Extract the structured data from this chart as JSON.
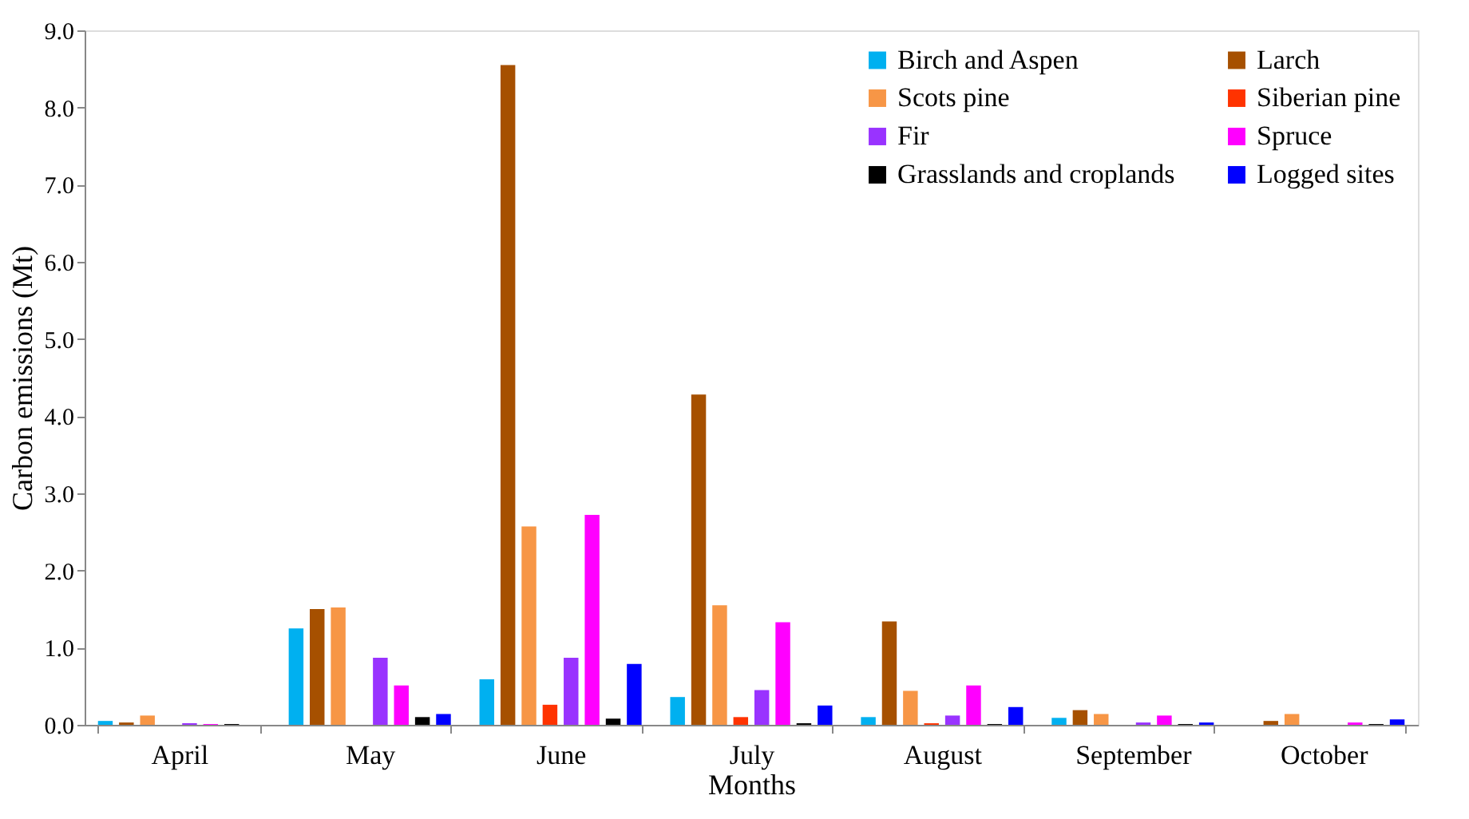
{
  "chart_data": {
    "type": "bar",
    "xlabel": "Months",
    "ylabel": "Carbon emissions (Mt)",
    "categories": [
      "April",
      "May",
      "June",
      "July",
      "August",
      "September",
      "October"
    ],
    "series": [
      {
        "name": "Birch and Aspen",
        "color": "#00b0f0",
        "values": [
          0.05,
          1.25,
          0.59,
          0.36,
          0.1,
          0.09,
          null
        ]
      },
      {
        "name": "Larch",
        "color": "#a65000",
        "values": [
          0.03,
          1.5,
          8.55,
          4.28,
          1.34,
          0.19,
          0.05
        ]
      },
      {
        "name": "Scots pine",
        "color": "#f79646",
        "values": [
          0.12,
          1.52,
          2.57,
          1.55,
          0.44,
          0.14,
          0.14
        ]
      },
      {
        "name": "Siberian pine",
        "color": "#ff3300",
        "values": [
          null,
          null,
          0.26,
          0.1,
          0.02,
          null,
          null
        ]
      },
      {
        "name": "Fir",
        "color": "#9933ff",
        "values": [
          0.02,
          0.87,
          0.87,
          0.45,
          0.12,
          0.03,
          null
        ]
      },
      {
        "name": "Spruce",
        "color": "#ff00ff",
        "values": [
          0.01,
          0.51,
          2.72,
          1.33,
          0.51,
          0.12,
          0.03
        ]
      },
      {
        "name": "Grasslands and croplands",
        "color": "#000000",
        "values": [
          0.01,
          0.1,
          0.08,
          0.02,
          0.01,
          0.01,
          0.01
        ]
      },
      {
        "name": "Logged sites",
        "color": "#0000ff",
        "values": [
          null,
          0.14,
          0.79,
          0.25,
          0.23,
          0.03,
          0.07
        ]
      }
    ],
    "ylim": [
      0,
      9
    ],
    "yticks": [
      {
        "value": 0,
        "label": "0.0"
      },
      {
        "value": 1,
        "label": "1.0"
      },
      {
        "value": 2,
        "label": "2.0"
      },
      {
        "value": 3,
        "label": "3.0"
      },
      {
        "value": 4,
        "label": "4.0"
      },
      {
        "value": 5,
        "label": "5.0"
      },
      {
        "value": 6,
        "label": "6.0"
      },
      {
        "value": 7,
        "label": "7.0"
      },
      {
        "value": 8,
        "label": "8.0"
      },
      {
        "value": 9,
        "label": "9.0"
      }
    ],
    "grid": false,
    "legend": "top right"
  }
}
